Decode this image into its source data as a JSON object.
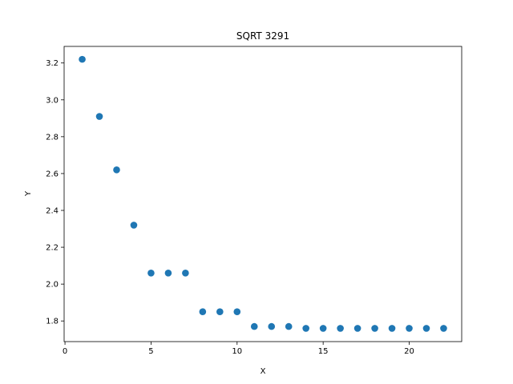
{
  "chart_data": {
    "type": "scatter",
    "title": "SQRT 3291",
    "xlabel": "X",
    "ylabel": "Y",
    "xlim": [
      -0.05,
      23.05
    ],
    "ylim": [
      1.688,
      3.29
    ],
    "xticks": [
      0,
      5,
      10,
      15,
      20
    ],
    "yticks": [
      1.8,
      2.0,
      2.2,
      2.4,
      2.6,
      2.8,
      3.0,
      3.2
    ],
    "grid": false,
    "marker_color": "#1f77b4",
    "series": [
      {
        "x": [
          1,
          2,
          3,
          4,
          5,
          6,
          7,
          8,
          9,
          10,
          11,
          12,
          13,
          14,
          15,
          16,
          17,
          18,
          19,
          20,
          21,
          22
        ],
        "y": [
          3.22,
          2.91,
          2.62,
          2.32,
          2.06,
          2.06,
          2.06,
          1.85,
          1.85,
          1.85,
          1.77,
          1.77,
          1.77,
          1.76,
          1.76,
          1.76,
          1.76,
          1.76,
          1.76,
          1.76,
          1.76,
          1.76
        ]
      }
    ]
  }
}
